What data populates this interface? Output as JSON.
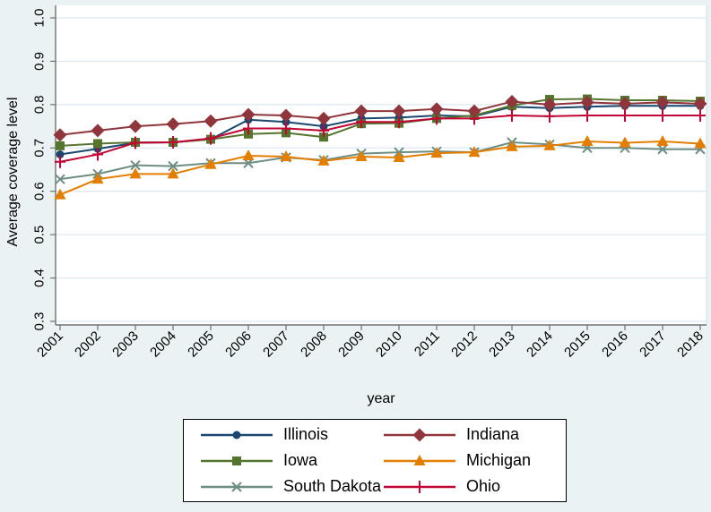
{
  "figure": {
    "background_color": "#eaf2f3",
    "plot_background": "#ffffff",
    "gridline_color": "#dbe9f1",
    "axis_line_color": "#707070",
    "plot_right_edge_color": "#cfdfe8",
    "text_color": "#000000"
  },
  "chart_data": {
    "type": "line",
    "title": "",
    "xlabel": "year",
    "ylabel": "Average coverage level",
    "x": [
      2001,
      2002,
      2003,
      2004,
      2005,
      2006,
      2007,
      2008,
      2009,
      2010,
      2011,
      2012,
      2013,
      2014,
      2015,
      2016,
      2017,
      2018
    ],
    "ylim": [
      0.3,
      1.0
    ],
    "ytick_labels": [
      "1.0",
      "0.9",
      "0.8",
      "0.7",
      "0.6",
      "0.5",
      "0.4",
      "0.3"
    ],
    "grid": true,
    "legend_position": "bottom-center",
    "legend_columns": 2,
    "series": [
      {
        "name": "Illinois",
        "color": "#1a476f",
        "marker": "circle",
        "values": [
          0.685,
          0.698,
          0.712,
          0.713,
          0.72,
          0.765,
          0.76,
          0.75,
          0.768,
          0.77,
          0.775,
          0.773,
          0.795,
          0.792,
          0.795,
          0.797,
          0.797,
          0.797
        ]
      },
      {
        "name": "Indiana",
        "color": "#90353b",
        "marker": "diamond",
        "values": [
          0.73,
          0.74,
          0.75,
          0.755,
          0.762,
          0.777,
          0.775,
          0.768,
          0.785,
          0.785,
          0.79,
          0.785,
          0.807,
          0.8,
          0.805,
          0.802,
          0.805,
          0.802
        ]
      },
      {
        "name": "Iowa",
        "color": "#55752f",
        "marker": "square",
        "values": [
          0.705,
          0.71,
          0.713,
          0.713,
          0.72,
          0.732,
          0.735,
          0.725,
          0.756,
          0.757,
          0.768,
          0.775,
          0.798,
          0.812,
          0.813,
          0.81,
          0.81,
          0.808
        ]
      },
      {
        "name": "Michigan",
        "color": "#e37e00",
        "marker": "triangle",
        "values": [
          0.592,
          0.628,
          0.64,
          0.64,
          0.662,
          0.682,
          0.68,
          0.67,
          0.68,
          0.678,
          0.688,
          0.69,
          0.703,
          0.705,
          0.715,
          0.712,
          0.715,
          0.71
        ]
      },
      {
        "name": "South Dakota",
        "color": "#6e8e84",
        "marker": "x",
        "values": [
          0.628,
          0.64,
          0.66,
          0.658,
          0.665,
          0.665,
          0.678,
          0.672,
          0.687,
          0.69,
          0.692,
          0.69,
          0.713,
          0.708,
          0.7,
          0.7,
          0.697,
          0.697
        ]
      },
      {
        "name": "Ohio",
        "color": "#c10534",
        "marker": "plus",
        "values": [
          0.668,
          0.685,
          0.712,
          0.713,
          0.722,
          0.745,
          0.745,
          0.74,
          0.76,
          0.76,
          0.768,
          0.768,
          0.775,
          0.773,
          0.775,
          0.775,
          0.775,
          0.775
        ]
      }
    ]
  }
}
